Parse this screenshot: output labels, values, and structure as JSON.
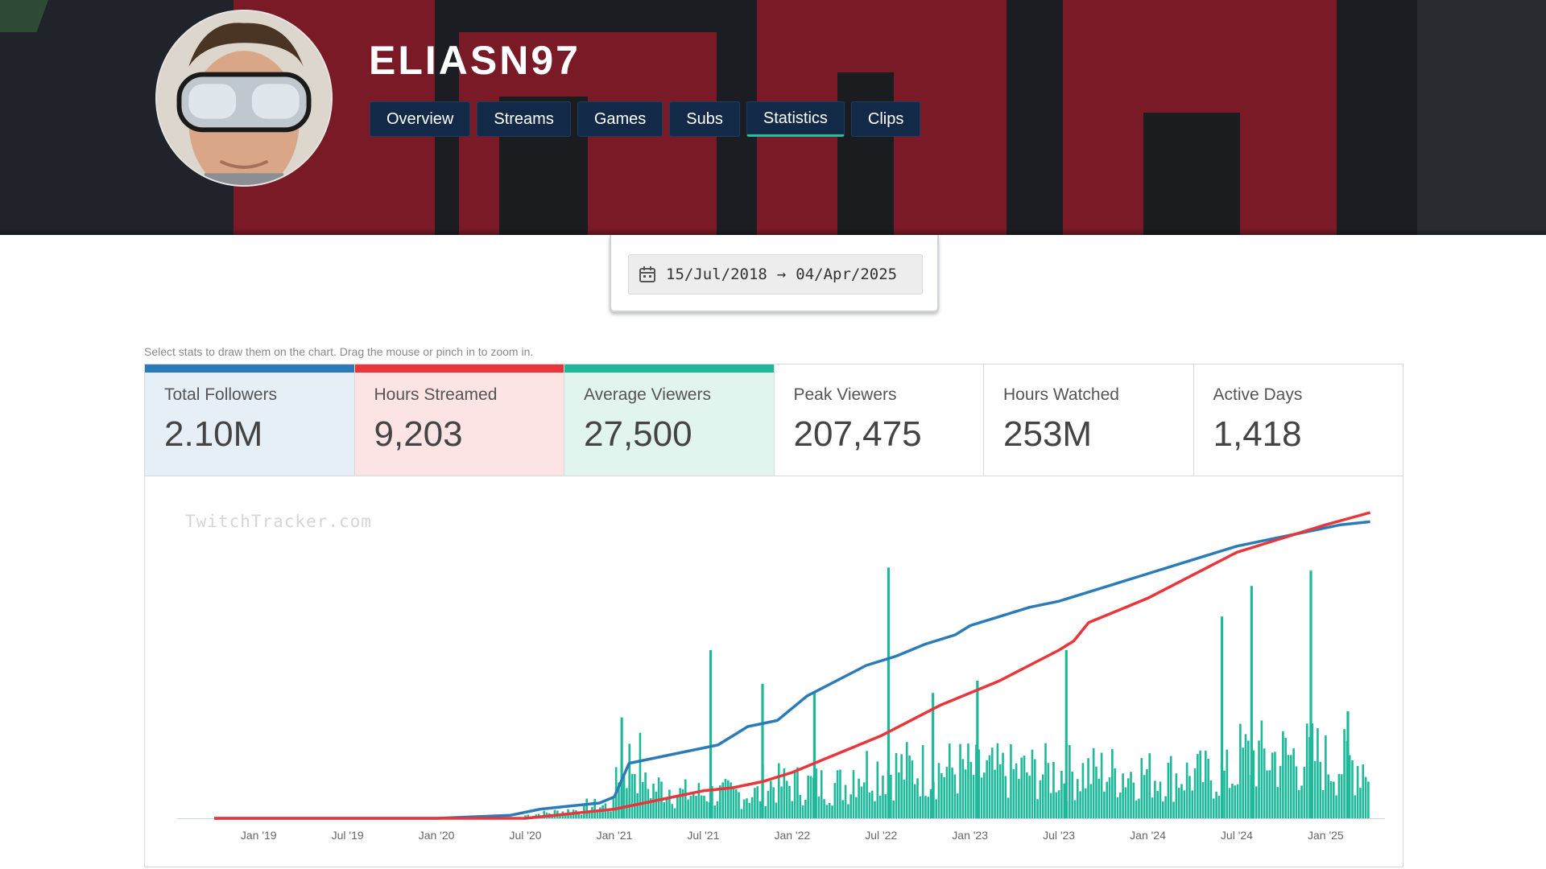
{
  "channel": {
    "name": "ELIASN97"
  },
  "nav": {
    "tabs": [
      {
        "label": "Overview"
      },
      {
        "label": "Streams"
      },
      {
        "label": "Games"
      },
      {
        "label": "Subs"
      },
      {
        "label": "Statistics"
      },
      {
        "label": "Clips"
      }
    ],
    "active": "Statistics"
  },
  "date_range": {
    "start": "15/Jul/2018",
    "arrow": "→",
    "end": "04/Apr/2025"
  },
  "hint": "Select stats to draw them on the chart. Drag the mouse or pinch in to zoom in.",
  "stats": [
    {
      "label": "Total Followers",
      "value": "2.10M"
    },
    {
      "label": "Hours Streamed",
      "value": "9,203"
    },
    {
      "label": "Average Viewers",
      "value": "27,500"
    },
    {
      "label": "Peak Viewers",
      "value": "207,475"
    },
    {
      "label": "Hours Watched",
      "value": "253M"
    },
    {
      "label": "Active Days",
      "value": "1,418"
    }
  ],
  "colors": {
    "followers": "#2c7bb9",
    "hours_streamed": "#e8363b",
    "average_viewers": "#1eb89a",
    "nav_bg": "#122a47"
  },
  "watermark": "TwitchTracker.com",
  "chart_data": {
    "type": "line",
    "x_unit": "months since Jan 2019",
    "xlim": [
      -5.5,
      76
    ],
    "tick_labels": [
      "Jan '19",
      "Jul '19",
      "Jan '20",
      "Jul '20",
      "Jan '21",
      "Jul '21",
      "Jan '22",
      "Jul '22",
      "Jan '23",
      "Jul '23",
      "Jan '24",
      "Jul '24",
      "Jan '25"
    ],
    "tick_positions": [
      0,
      6,
      12,
      18,
      24,
      30,
      36,
      42,
      48,
      54,
      60,
      66,
      72
    ],
    "series": [
      {
        "name": "Total Followers",
        "kind": "line",
        "color": "#2c7bb9",
        "unit": "fraction of max",
        "x": [
          -3,
          12,
          17,
          19,
          21,
          23,
          24,
          25,
          27,
          29,
          31,
          33,
          35,
          37,
          39,
          41,
          43,
          45,
          47,
          48,
          50,
          52,
          54,
          56,
          58,
          60,
          62,
          64,
          66,
          68,
          70,
          72,
          73,
          75
        ],
        "y": [
          0,
          0,
          0.01,
          0.03,
          0.04,
          0.05,
          0.07,
          0.18,
          0.2,
          0.22,
          0.24,
          0.3,
          0.32,
          0.4,
          0.45,
          0.5,
          0.53,
          0.57,
          0.6,
          0.63,
          0.66,
          0.69,
          0.71,
          0.74,
          0.77,
          0.8,
          0.83,
          0.86,
          0.89,
          0.91,
          0.93,
          0.95,
          0.96,
          0.97
        ]
      },
      {
        "name": "Hours Streamed",
        "kind": "line",
        "color": "#e8363b",
        "unit": "fraction of max",
        "x": [
          -3,
          12,
          18,
          20,
          22,
          24,
          26,
          28,
          30,
          32,
          34,
          36,
          38,
          40,
          42,
          44,
          46,
          48,
          50,
          52,
          54,
          55,
          56,
          58,
          60,
          62,
          64,
          66,
          68,
          70,
          72,
          75
        ],
        "y": [
          0,
          0,
          0,
          0.01,
          0.02,
          0.03,
          0.05,
          0.07,
          0.09,
          0.1,
          0.12,
          0.15,
          0.19,
          0.23,
          0.27,
          0.32,
          0.37,
          0.41,
          0.45,
          0.5,
          0.55,
          0.58,
          0.64,
          0.68,
          0.72,
          0.77,
          0.82,
          0.87,
          0.9,
          0.93,
          0.96,
          1
        ]
      },
      {
        "name": "Average Viewers",
        "kind": "bar",
        "color": "#1eb89a",
        "unit": "fraction of max",
        "x_start": 18,
        "x_end": 75,
        "spikes": [
          {
            "x": 42.5,
            "y": 0.82
          },
          {
            "x": 30.5,
            "y": 0.55
          },
          {
            "x": 34,
            "y": 0.44
          },
          {
            "x": 37.5,
            "y": 0.41
          },
          {
            "x": 54.5,
            "y": 0.55
          },
          {
            "x": 48.5,
            "y": 0.45
          },
          {
            "x": 65,
            "y": 0.66
          },
          {
            "x": 67,
            "y": 0.76
          },
          {
            "x": 71,
            "y": 0.81
          },
          {
            "x": 24.5,
            "y": 0.33
          },
          {
            "x": 45.5,
            "y": 0.41
          },
          {
            "x": 73.5,
            "y": 0.35
          }
        ]
      }
    ]
  }
}
